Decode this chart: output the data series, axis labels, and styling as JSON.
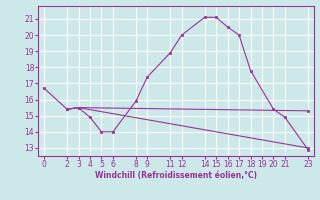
{
  "xlabel": "Windchill (Refroidissement éolien,°C)",
  "background_color": "#cce8e8",
  "grid_color": "#ffffff",
  "line_color": "#993399",
  "xlim": [
    -0.5,
    23.5
  ],
  "ylim": [
    12.5,
    21.8
  ],
  "yticks": [
    13,
    14,
    15,
    16,
    17,
    18,
    19,
    20,
    21
  ],
  "xticks": [
    0,
    2,
    3,
    4,
    5,
    6,
    8,
    9,
    11,
    12,
    14,
    15,
    16,
    17,
    18,
    19,
    20,
    21,
    23
  ],
  "line1_x": [
    0,
    2,
    3,
    4,
    5,
    6,
    8,
    9,
    11,
    12,
    14,
    15,
    16,
    17,
    18,
    20,
    21,
    23
  ],
  "line1_y": [
    16.7,
    15.4,
    15.5,
    14.9,
    14.0,
    14.0,
    15.9,
    17.4,
    18.9,
    20.0,
    21.1,
    21.1,
    20.5,
    20.0,
    17.8,
    15.4,
    14.9,
    12.9
  ],
  "line2_x": [
    2,
    3,
    23
  ],
  "line2_y": [
    15.4,
    15.5,
    15.3
  ],
  "line3_x": [
    2,
    3,
    23
  ],
  "line3_y": [
    15.4,
    15.5,
    13.0
  ],
  "tick_fontsize": 5.5,
  "xlabel_fontsize": 5.5,
  "marker_size": 2.0
}
